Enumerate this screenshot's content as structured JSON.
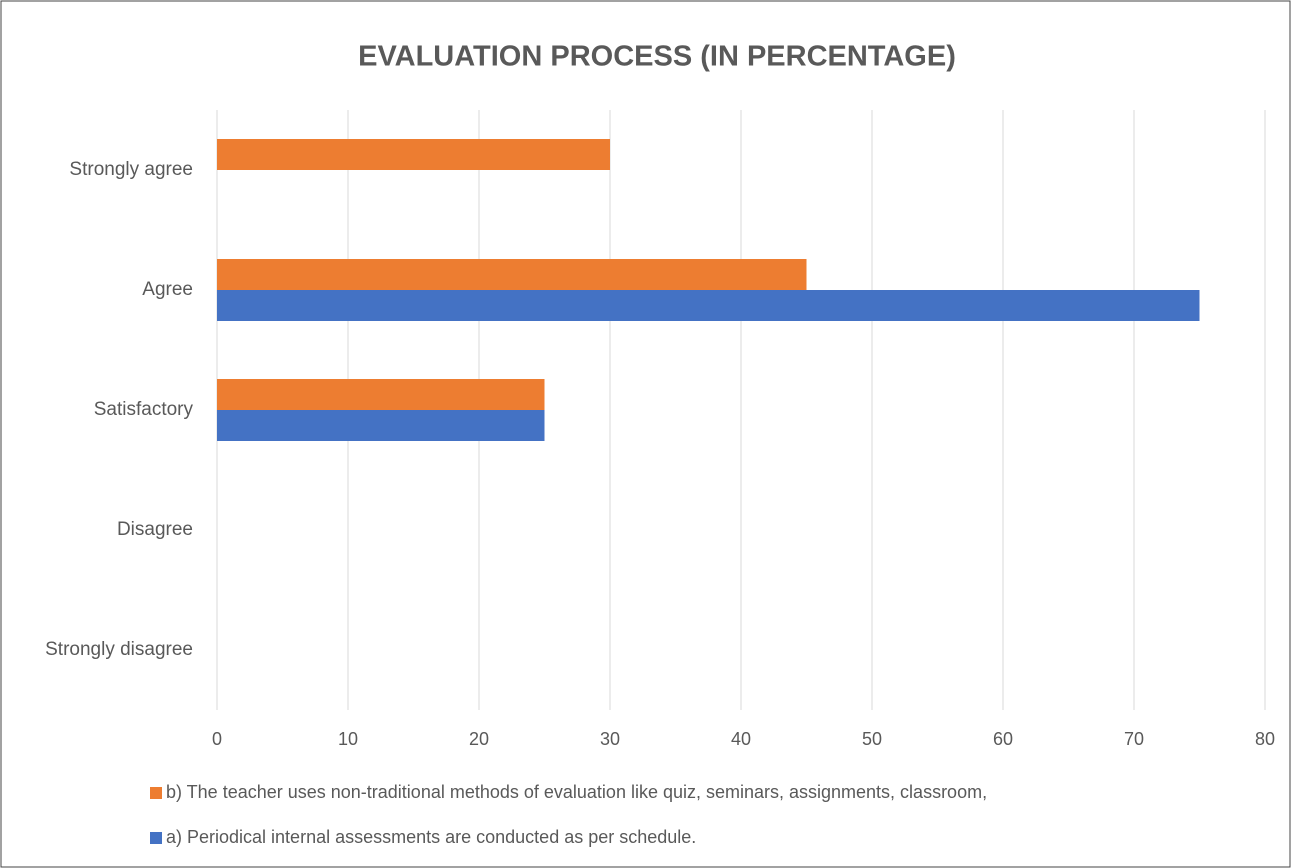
{
  "chart_data": {
    "type": "hbar",
    "title": "EVALUATION  PROCESS (IN PERCENTAGE)",
    "categories": [
      "Strongly agree",
      "Agree",
      "Satisfactory",
      "Disagree",
      "Strongly disagree"
    ],
    "series": [
      {
        "name": "b) The teacher uses non-traditional methods of evaluation like quiz, seminars, assignments, classroom,",
        "color": "#ed7d31",
        "values": [
          30,
          45,
          25,
          0,
          0
        ]
      },
      {
        "name": "a) Periodical internal assessments are conducted as per schedule.",
        "color": "#4472c4",
        "values": [
          0,
          75,
          25,
          0,
          0
        ]
      }
    ],
    "xlim": [
      0,
      80
    ],
    "xticks": [
      0,
      10,
      20,
      30,
      40,
      50,
      60,
      70,
      80
    ],
    "grid": true,
    "legend": "bottom"
  }
}
